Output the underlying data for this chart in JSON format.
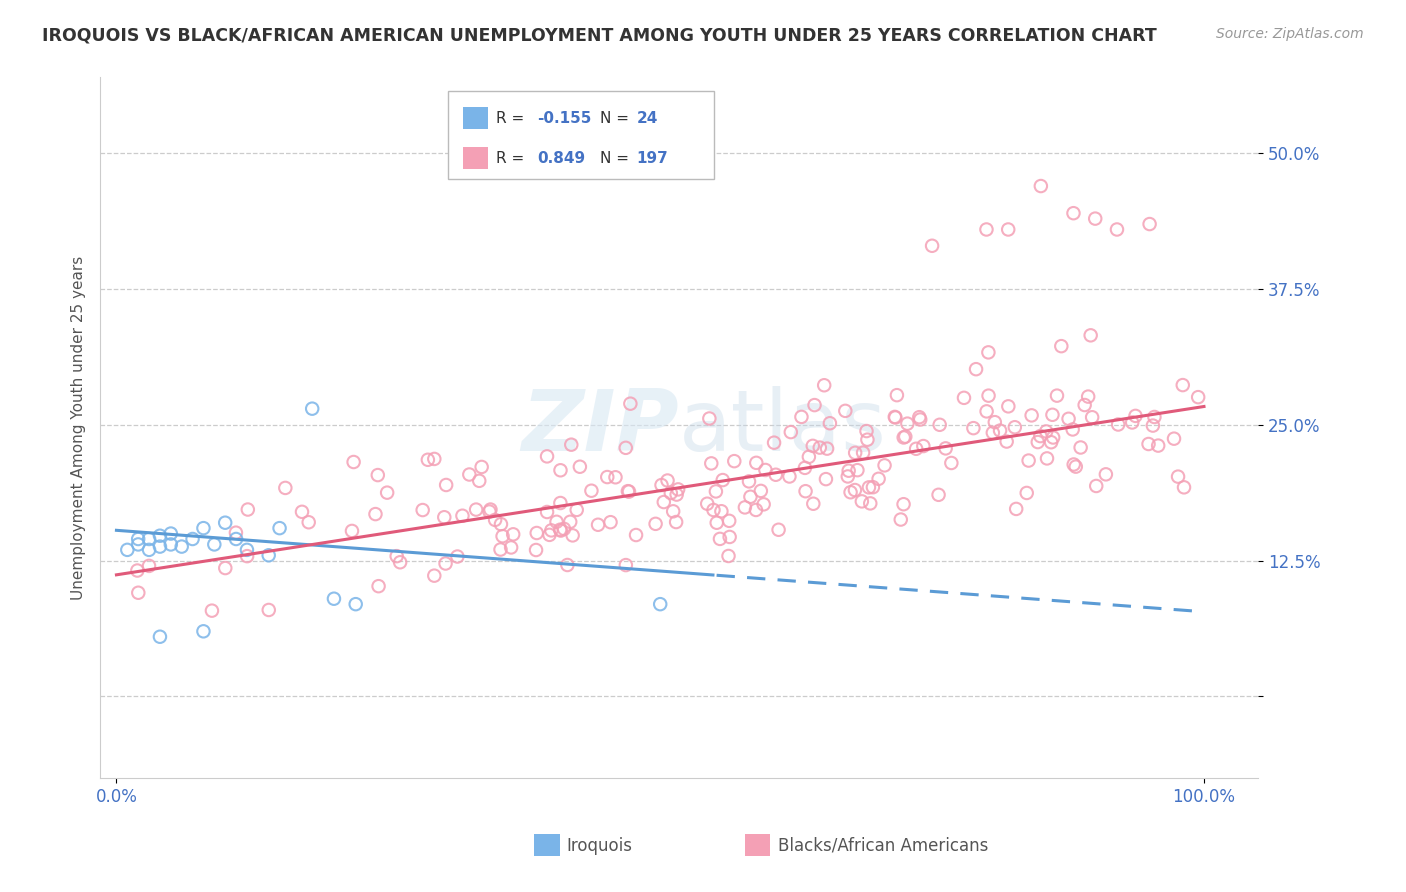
{
  "title": "IROQUOIS VS BLACK/AFRICAN AMERICAN UNEMPLOYMENT AMONG YOUTH UNDER 25 YEARS CORRELATION CHART",
  "source": "Source: ZipAtlas.com",
  "ylabel": "Unemployment Among Youth under 25 years",
  "r_iroquois": -0.155,
  "n_iroquois": 24,
  "r_black": 0.849,
  "n_black": 197,
  "color_iroquois": "#7ab4e8",
  "color_black": "#f4a0b5",
  "color_trendline_iroquois": "#5b9bd5",
  "color_trendline_black": "#e05a7a",
  "watermark_text": "ZIPatlas",
  "background_color": "#ffffff",
  "grid_color": "#cccccc",
  "legend_color": "#4472c4",
  "ytick_color": "#4472c4",
  "xtick_color": "#4472c4"
}
